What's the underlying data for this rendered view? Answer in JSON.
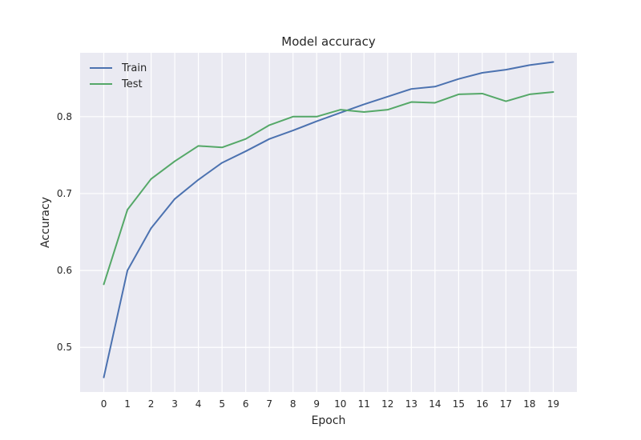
{
  "chart_data": {
    "type": "line",
    "title": "Model accuracy",
    "xlabel": "Epoch",
    "ylabel": "Accuracy",
    "x": [
      0,
      1,
      2,
      3,
      4,
      5,
      6,
      7,
      8,
      9,
      10,
      11,
      12,
      13,
      14,
      15,
      16,
      17,
      18,
      19
    ],
    "xticks": [
      "0",
      "1",
      "2",
      "3",
      "4",
      "5",
      "6",
      "7",
      "8",
      "9",
      "10",
      "11",
      "12",
      "13",
      "14",
      "15",
      "16",
      "17",
      "18",
      "19"
    ],
    "yticks": [
      0.5,
      0.6,
      0.7,
      0.8
    ],
    "ytick_labels": [
      "0.5",
      "0.6",
      "0.7",
      "0.8"
    ],
    "ylim": [
      0.442,
      0.883
    ],
    "grid": true,
    "legend": "top-left",
    "series": [
      {
        "name": "Train",
        "color": "#4c72b0",
        "values": [
          0.461,
          0.6,
          0.655,
          0.693,
          0.718,
          0.74,
          0.755,
          0.771,
          0.782,
          0.794,
          0.805,
          0.816,
          0.826,
          0.836,
          0.839,
          0.849,
          0.857,
          0.861,
          0.867,
          0.871
        ]
      },
      {
        "name": "Test",
        "color": "#55a868",
        "values": [
          0.582,
          0.679,
          0.719,
          0.742,
          0.762,
          0.76,
          0.771,
          0.789,
          0.8,
          0.8,
          0.809,
          0.806,
          0.809,
          0.819,
          0.818,
          0.829,
          0.83,
          0.82,
          0.829,
          0.832
        ]
      }
    ],
    "background_color": "#eaeaf2",
    "grid_color": "#ffffff"
  }
}
